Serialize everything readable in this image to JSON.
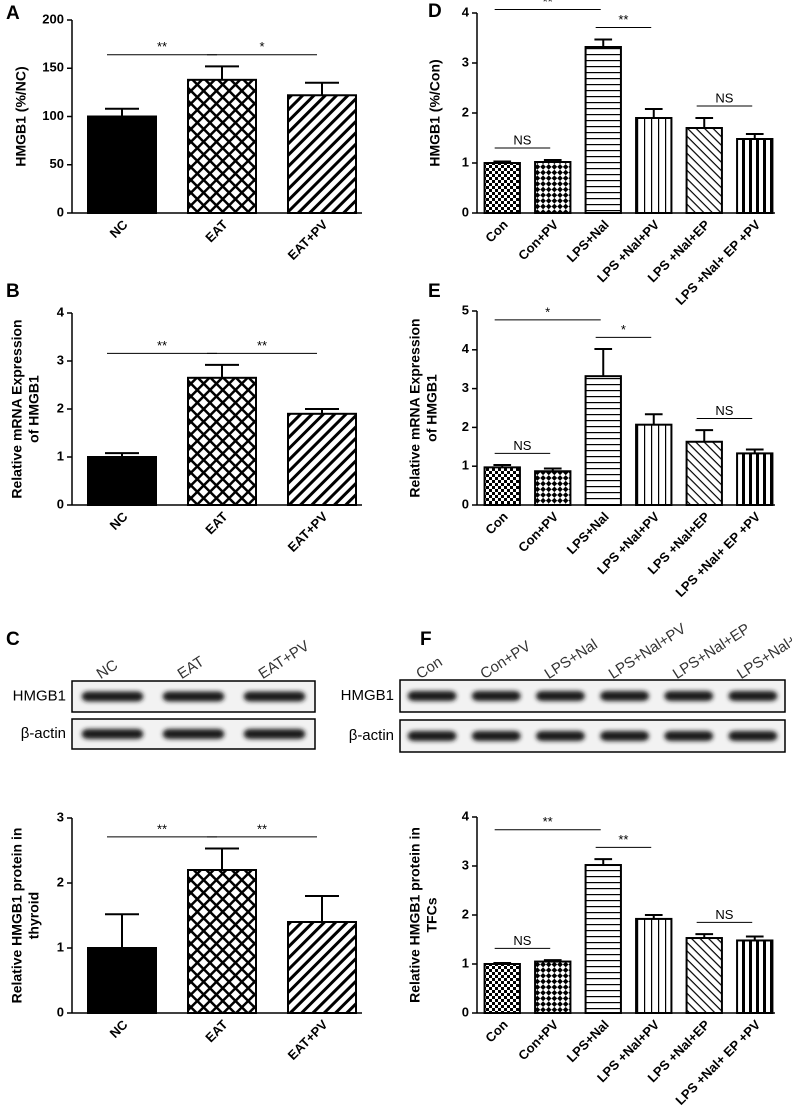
{
  "chart_data": [
    {
      "type": "bar",
      "panel": "A",
      "ylabel": [
        "HMGB1 (%/NC)"
      ],
      "categories": [
        "NC",
        "EAT",
        "EAT+PV"
      ],
      "values": [
        100,
        138,
        122
      ],
      "errors": [
        8,
        14,
        13
      ],
      "patterns": [
        "solid",
        "crosshatch",
        "diagonal"
      ],
      "ylim": [
        0,
        200
      ],
      "yticks": [
        0,
        50,
        100,
        150,
        200
      ],
      "comparisons": [
        {
          "label": "**",
          "between": [
            0,
            1
          ]
        },
        {
          "label": "*",
          "between": [
            1,
            2
          ]
        }
      ]
    },
    {
      "type": "bar",
      "panel": "D",
      "ylabel": [
        "HMGB1 (%/Con)"
      ],
      "categories": [
        "Con",
        "Con+PV",
        "LPS+Nal",
        "LPS +Nal+PV",
        "LPS +Nal+EP",
        "LPS +Nal+ EP +PV"
      ],
      "values": [
        1.0,
        1.02,
        3.32,
        1.9,
        1.7,
        1.48
      ],
      "errors": [
        0.03,
        0.04,
        0.15,
        0.18,
        0.2,
        0.1
      ],
      "patterns": [
        "checker",
        "checker-large",
        "horizontal",
        "vertical",
        "diagonal-right",
        "vertical-thick"
      ],
      "ylim": [
        0,
        4
      ],
      "yticks": [
        0,
        1,
        2,
        3,
        4
      ],
      "comparisons": [
        {
          "label": "NS",
          "between": [
            0,
            1
          ]
        },
        {
          "label": "**",
          "between": [
            2,
            3
          ]
        },
        {
          "label": "**",
          "between": [
            0,
            2
          ]
        },
        {
          "label": "NS",
          "between": [
            4,
            5
          ]
        }
      ]
    },
    {
      "type": "bar",
      "panel": "B",
      "ylabel": [
        "Relative mRNA Expression",
        "of HMGB1"
      ],
      "categories": [
        "NC",
        "EAT",
        "EAT+PV"
      ],
      "values": [
        1.0,
        2.65,
        1.9
      ],
      "errors": [
        0.08,
        0.27,
        0.1
      ],
      "patterns": [
        "solid",
        "crosshatch",
        "diagonal"
      ],
      "ylim": [
        0,
        4
      ],
      "yticks": [
        0,
        1,
        2,
        3,
        4
      ],
      "comparisons": [
        {
          "label": "**",
          "between": [
            0,
            1
          ]
        },
        {
          "label": "**",
          "between": [
            1,
            2
          ]
        }
      ]
    },
    {
      "type": "bar",
      "panel": "E",
      "ylabel": [
        "Relative mRNA Expression",
        "of HMGB1"
      ],
      "categories": [
        "Con",
        "Con+PV",
        "LPS+Nal",
        "LPS +Nal+PV",
        "LPS +Nal+EP",
        "LPS +Nal+ EP +PV"
      ],
      "values": [
        0.97,
        0.87,
        3.32,
        2.07,
        1.63,
        1.33
      ],
      "errors": [
        0.06,
        0.07,
        0.7,
        0.27,
        0.3,
        0.1
      ],
      "patterns": [
        "checker",
        "checker-large",
        "horizontal",
        "vertical",
        "diagonal-right",
        "vertical-thick"
      ],
      "ylim": [
        0,
        5
      ],
      "yticks": [
        0,
        1,
        2,
        3,
        4,
        5
      ],
      "comparisons": [
        {
          "label": "NS",
          "between": [
            0,
            1
          ]
        },
        {
          "label": "*",
          "between": [
            2,
            3
          ]
        },
        {
          "label": "*",
          "between": [
            0,
            2
          ]
        },
        {
          "label": "NS",
          "between": [
            4,
            5
          ]
        }
      ]
    },
    {
      "type": "bar",
      "ylabel": [
        "Relative HMGB1 protein in",
        "thyroid"
      ],
      "categories": [
        "NC",
        "EAT",
        "EAT+PV"
      ],
      "values": [
        1.0,
        2.2,
        1.4
      ],
      "errors": [
        0.52,
        0.33,
        0.4
      ],
      "patterns": [
        "solid",
        "crosshatch",
        "diagonal"
      ],
      "ylim": [
        0,
        3
      ],
      "yticks": [
        0,
        1,
        2,
        3
      ],
      "comparisons": [
        {
          "label": "**",
          "between": [
            0,
            1
          ]
        },
        {
          "label": "**",
          "between": [
            1,
            2
          ]
        }
      ]
    },
    {
      "type": "bar",
      "ylabel": [
        "Relative HMGB1 protein in",
        "TFCs"
      ],
      "categories": [
        "Con",
        "Con+PV",
        "LPS+Nal",
        "LPS +Nal+PV",
        "LPS +Nal+EP",
        "LPS +Nal+ EP +PV"
      ],
      "values": [
        1.0,
        1.05,
        3.02,
        1.92,
        1.53,
        1.48
      ],
      "errors": [
        0.02,
        0.03,
        0.12,
        0.08,
        0.08,
        0.08
      ],
      "patterns": [
        "checker",
        "checker-large",
        "horizontal",
        "vertical",
        "diagonal-right",
        "vertical-thick"
      ],
      "ylim": [
        0,
        4
      ],
      "yticks": [
        0,
        1,
        2,
        3,
        4
      ],
      "comparisons": [
        {
          "label": "NS",
          "between": [
            0,
            1
          ]
        },
        {
          "label": "**",
          "between": [
            2,
            3
          ]
        },
        {
          "label": "**",
          "between": [
            0,
            2
          ]
        },
        {
          "label": "NS",
          "between": [
            4,
            5
          ]
        }
      ]
    }
  ],
  "blots": [
    {
      "panel": "C",
      "lanes": [
        "NC",
        "EAT",
        "EAT+PV"
      ],
      "rows": [
        "HMGB1",
        "β-actin"
      ]
    },
    {
      "panel": "F",
      "lanes": [
        "Con",
        "Con+PV",
        "LPS+Nal",
        "LPS+Nal+PV",
        "LPS+Nal+EP",
        "LPS+Nal+EP+PV"
      ],
      "rows": [
        "HMGB1",
        "β-actin"
      ]
    }
  ]
}
